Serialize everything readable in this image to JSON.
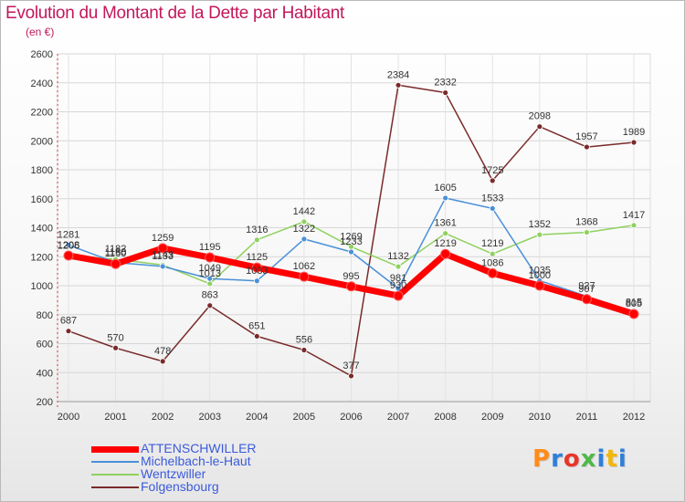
{
  "chart_data": {
    "type": "line",
    "title": "Evolution du Montant de la Dette par Habitant",
    "subtitle": "(en €)",
    "x": [
      "2000",
      "2001",
      "2002",
      "2003",
      "2004",
      "2005",
      "2006",
      "2007",
      "2008",
      "2009",
      "2010",
      "2011",
      "2012"
    ],
    "ylim": [
      200,
      2600
    ],
    "yticks": [
      200,
      400,
      600,
      800,
      1000,
      1200,
      1400,
      1600,
      1800,
      2000,
      2200,
      2400,
      2600
    ],
    "grid": true,
    "legend_position": "bottom-left",
    "series": [
      {
        "name": "ATTENSCHWILLER",
        "color": "#ff0000",
        "width": 7,
        "marker_r": 5,
        "values": [
          1208,
          1150,
          1259,
          1195,
          1125,
          1062,
          995,
          930,
          1219,
          1086,
          1000,
          907,
          805
        ]
      },
      {
        "name": "Michelbach-le-Haut",
        "color": "#4a90d9",
        "width": 1.5,
        "marker_r": 3,
        "values": [
          1281,
          1160,
          1133,
          1049,
          1033,
          1322,
          1233,
          981,
          1605,
          1533,
          1035,
          927,
          815
        ]
      },
      {
        "name": "Wentzwiller",
        "color": "#8fd15f",
        "width": 1.5,
        "marker_r": 3,
        "values": [
          1206,
          1182,
          1143,
          1013,
          1316,
          1442,
          1269,
          1132,
          1361,
          1219,
          1352,
          1368,
          1417
        ]
      },
      {
        "name": "Folgensbourg",
        "color": "#7a2a2a",
        "width": 1.5,
        "marker_r": 3,
        "values": [
          687,
          570,
          478,
          863,
          651,
          556,
          377,
          2384,
          2332,
          1725,
          2098,
          1957,
          1989
        ]
      }
    ],
    "data_labels": [
      {
        "series": 0,
        "labels": [
          "1208",
          "1150",
          "1259",
          "1195",
          "1125",
          "1062",
          "995",
          "930",
          "1219",
          "1086",
          "1000",
          "907",
          "805"
        ]
      },
      {
        "series": 1,
        "labels": [
          "1281",
          "1160",
          "1133",
          "1049",
          "1033",
          "1322",
          "1233",
          "981",
          "1605",
          "1533",
          "1035",
          "927",
          "815"
        ]
      },
      {
        "series": 2,
        "labels": [
          "1206",
          "1182",
          "1143",
          "1013",
          "1316",
          "1442",
          "1269",
          "1132",
          "1361",
          "1219",
          "1352",
          "1368",
          "1417"
        ]
      },
      {
        "series": 3,
        "labels": [
          "687",
          "570",
          "478",
          "863",
          "651",
          "556",
          "377",
          "2384",
          "2332",
          "1725",
          "2098",
          "1957",
          "1989"
        ]
      }
    ]
  },
  "logo": {
    "text": "Proxiti",
    "colors": [
      "#ff8c1a",
      "#2f7fd8",
      "#e8352b",
      "#4fb848",
      "#2f7fd8",
      "#f2b705",
      "#2f7fd8"
    ]
  }
}
